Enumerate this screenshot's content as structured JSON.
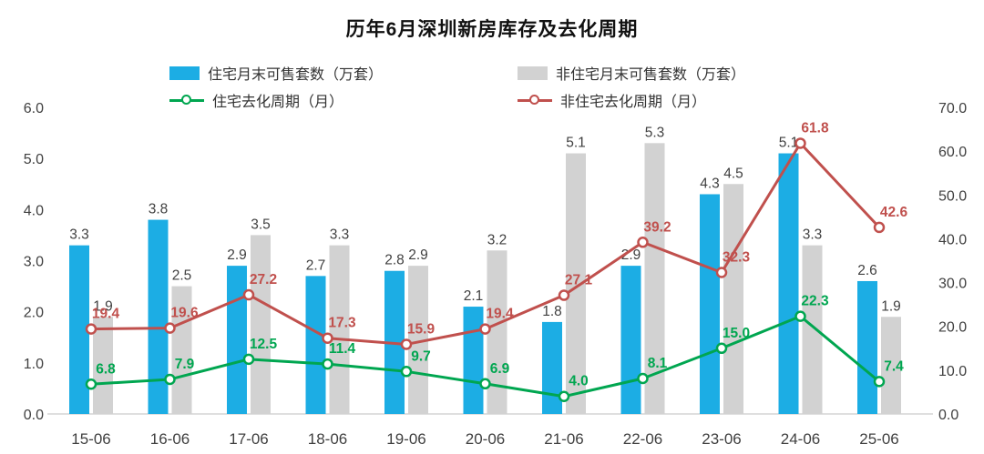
{
  "chart_data": {
    "type": "bar",
    "subtype": "combo-bar-line",
    "title": "历年6月深圳新房库存及去化周期",
    "categories": [
      "15-06",
      "16-06",
      "17-06",
      "18-06",
      "19-06",
      "20-06",
      "21-06",
      "22-06",
      "23-06",
      "24-06",
      "25-06"
    ],
    "left_axis": {
      "min": 0,
      "max": 6,
      "step": 1,
      "ticks": [
        "6.0",
        "5.0",
        "4.0",
        "3.0",
        "2.0",
        "1.0",
        "0.0"
      ]
    },
    "right_axis": {
      "min": 0,
      "max": 70,
      "step": 10,
      "ticks": [
        "70.0",
        "60.0",
        "50.0",
        "40.0",
        "30.0",
        "20.0",
        "10.0",
        "0.0"
      ]
    },
    "grid": false,
    "legend_position": "top",
    "series": [
      {
        "name": "住宅月末可售套数（万套）",
        "type": "bar",
        "axis": "left",
        "color": "#1CADE4",
        "values": [
          3.3,
          3.8,
          2.9,
          2.7,
          2.8,
          2.1,
          1.8,
          2.9,
          4.3,
          5.1,
          2.6
        ]
      },
      {
        "name": "非住宅月末可售套数（万套）",
        "type": "bar",
        "axis": "left",
        "color": "#D2D2D2",
        "values": [
          1.9,
          2.5,
          3.5,
          3.3,
          2.9,
          3.2,
          5.1,
          5.3,
          4.5,
          3.3,
          1.9
        ]
      },
      {
        "name": "住宅去化周期（月）",
        "type": "line",
        "axis": "right",
        "color": "#00A650",
        "values": [
          6.8,
          7.9,
          12.5,
          11.4,
          9.7,
          6.9,
          4.0,
          8.1,
          15.0,
          22.3,
          7.4
        ]
      },
      {
        "name": "非住宅去化周期（月）",
        "type": "line",
        "axis": "right",
        "color": "#C0504D",
        "values": [
          19.4,
          19.6,
          27.2,
          17.3,
          15.9,
          19.4,
          27.1,
          39.2,
          32.3,
          61.8,
          42.6
        ]
      }
    ],
    "label_color_bars": "#404040",
    "axis_label_color": "#404040"
  }
}
